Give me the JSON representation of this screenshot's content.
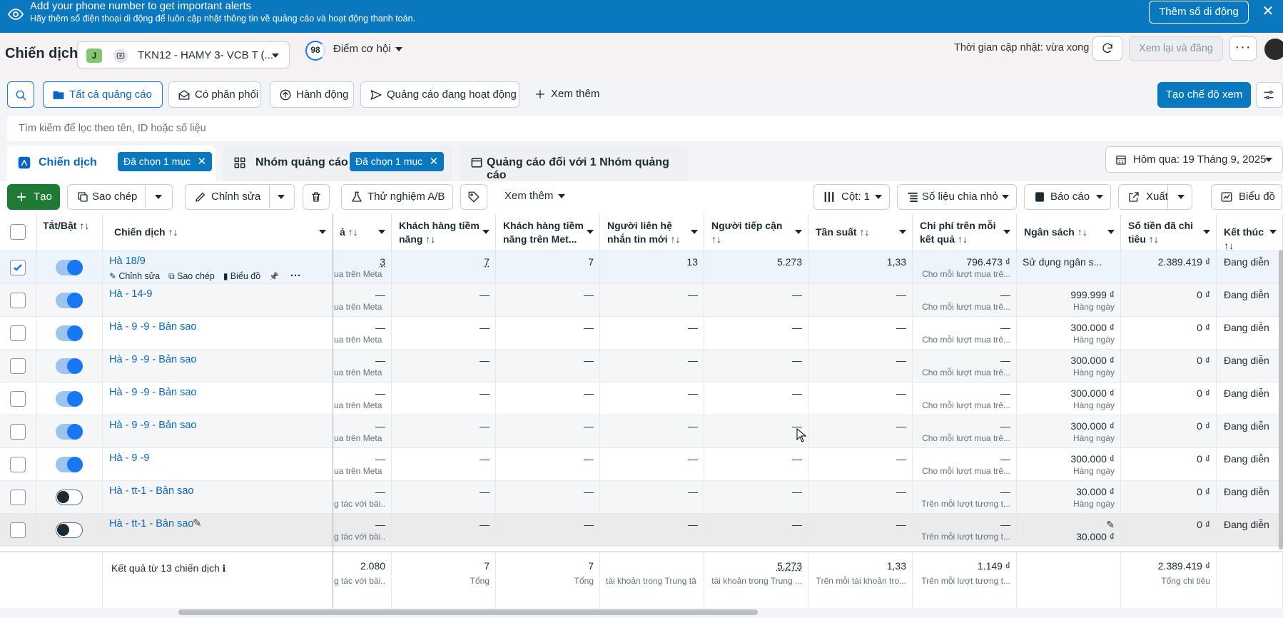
{
  "banner": {
    "title": "Add your phone number to get important alerts",
    "subtitle": "Hãy thêm số điện thoại di động để luôn cập nhật thông tin về quảng cáo và hoạt động thanh toán.",
    "button": "Thêm số di động",
    "close": "✕"
  },
  "header": {
    "title": "Chiến dịch",
    "account_badge": "J",
    "account_name": "TKN12 - HAMY 3- VCB T (...",
    "score_value": "98",
    "score_label": "Điểm cơ hội",
    "update_time": "Thời gian cập nhật: vừa xong",
    "review_button": "Xem lại và đăng",
    "more": "···"
  },
  "filters": {
    "all_ads": "Tất cả quảng cáo",
    "delivery": "Có phân phối",
    "actions": "Hành động",
    "active_ads": "Quảng cáo đang hoạt động",
    "see_more": "Xem thêm",
    "create_view": "Tạo chế độ xem",
    "search_placeholder": "Tìm kiếm để lọc theo tên, ID hoặc số liệu"
  },
  "tabs": {
    "campaign": "Chiến dịch",
    "campaign_chip": "Đã chọn 1 mục",
    "adset": "Nhóm quảng cáo",
    "adset_chip": "Đã chọn 1 mục",
    "ads": "Quảng cáo đối với 1 Nhóm quảng cáo",
    "date": "Hôm qua: 19 Tháng 9, 2025"
  },
  "toolbar": {
    "create": "Tạo",
    "duplicate": "Sao chép",
    "edit": "Chỉnh sửa",
    "ab_test": "Thử nghiệm A/B",
    "more": "Xem thêm",
    "columns": "Cột: 1",
    "breakdown": "Số liệu chia nhỏ",
    "reports": "Báo cáo",
    "export": "Xuất",
    "chart": "Biểu đồ"
  },
  "columns": {
    "toggle": "Tắt/Bật ↑↓",
    "campaign": "Chiến dịch ↑↓",
    "results": "ả ↑↓",
    "leads": "Khách hàng tiềm năng ↑↓",
    "leads_meta": "Khách hàng tiềm năng trên Met...",
    "new_contacts": "Người liên hệ nhắn tin mới ↑↓",
    "reach": "Người tiếp cận ↑↓",
    "frequency": "Tần suất ↑↓",
    "cost_per_result": "Chi phí trên mỗi kết quả ↑↓",
    "budget": "Ngân sách ↑↓",
    "amount_spent": "Số tiền đã chi tiêu ↑↓",
    "end": "Kết thúc ↑↓"
  },
  "row_actions": {
    "edit": "Chỉnh sửa",
    "duplicate": "Sao chép",
    "chart": "Biểu đồ"
  },
  "rows": [
    {
      "name": "Hà 18/9",
      "results": "3",
      "results_sub": "ua trên Meta",
      "leads": "7",
      "leads_meta": "7",
      "contacts": "13",
      "reach": "5.273",
      "freq": "1,33",
      "cpr": "796.473 ₫",
      "cpr_sub": "Cho mỗi lượt mua trê...",
      "budget": "Sử dụng ngân s...",
      "budget_sub": "",
      "spent": "2.389.419 ₫",
      "end": "Đang diễn"
    },
    {
      "name": "Hà - 14-9",
      "results": "—",
      "results_sub": "ua trên Meta",
      "leads": "—",
      "leads_meta": "—",
      "contacts": "—",
      "reach": "—",
      "freq": "—",
      "cpr": "—",
      "cpr_sub": "Cho mỗi lượt mua trê...",
      "budget": "999.999 ₫",
      "budget_sub": "Hàng ngày",
      "spent": "0 ₫",
      "end": "Đang diễn"
    },
    {
      "name": "Hà - 9 -9 - Bản sao",
      "results": "—",
      "results_sub": "ua trên Meta",
      "leads": "—",
      "leads_meta": "—",
      "contacts": "—",
      "reach": "—",
      "freq": "—",
      "cpr": "—",
      "cpr_sub": "Cho mỗi lượt mua trê...",
      "budget": "300.000 ₫",
      "budget_sub": "Hàng ngày",
      "spent": "0 ₫",
      "end": "Đang diễn"
    },
    {
      "name": "Hà - 9 -9 - Bản sao",
      "results": "—",
      "results_sub": "ua trên Meta",
      "leads": "—",
      "leads_meta": "—",
      "contacts": "—",
      "reach": "—",
      "freq": "—",
      "cpr": "—",
      "cpr_sub": "Cho mỗi lượt mua trê...",
      "budget": "300.000 ₫",
      "budget_sub": "Hàng ngày",
      "spent": "0 ₫",
      "end": "Đang diễn"
    },
    {
      "name": "Hà - 9 -9 - Bản sao",
      "results": "—",
      "results_sub": "ua trên Meta",
      "leads": "—",
      "leads_meta": "—",
      "contacts": "—",
      "reach": "—",
      "freq": "—",
      "cpr": "—",
      "cpr_sub": "Cho mỗi lượt mua trê...",
      "budget": "300.000 ₫",
      "budget_sub": "Hàng ngày",
      "spent": "0 ₫",
      "end": "Đang diễn"
    },
    {
      "name": "Hà - 9 -9 - Bản sao",
      "results": "—",
      "results_sub": "ua trên Meta",
      "leads": "—",
      "leads_meta": "—",
      "contacts": "—",
      "reach": "—",
      "freq": "—",
      "cpr": "—",
      "cpr_sub": "Cho mỗi lượt mua trê...",
      "budget": "300.000 ₫",
      "budget_sub": "Hàng ngày",
      "spent": "0 ₫",
      "end": "Đang diễn"
    },
    {
      "name": "Hà - 9 -9",
      "results": "—",
      "results_sub": "ua trên Meta",
      "leads": "—",
      "leads_meta": "—",
      "contacts": "—",
      "reach": "—",
      "freq": "—",
      "cpr": "—",
      "cpr_sub": "Cho mỗi lượt mua trê...",
      "budget": "300.000 ₫",
      "budget_sub": "Hàng ngày",
      "spent": "0 ₫",
      "end": "Đang diễn"
    },
    {
      "name": "Hà - tt-1 - Bản sao",
      "results": "—",
      "results_sub": "g tác với bài...",
      "leads": "—",
      "leads_meta": "—",
      "contacts": "—",
      "reach": "—",
      "freq": "—",
      "cpr": "—",
      "cpr_sub": "Trên mỗi lượt tương t...",
      "budget": "30.000 ₫",
      "budget_sub": "Hàng ngày",
      "spent": "0 ₫",
      "end": "Đang diễn"
    },
    {
      "name": "Hà - tt-1 - Bản sao",
      "results": "—",
      "results_sub": "g tác với bài...",
      "leads": "—",
      "leads_meta": "—",
      "contacts": "—",
      "reach": "—",
      "freq": "—",
      "cpr": "—",
      "cpr_sub": "Trên mỗi lượt tương t...",
      "budget": "",
      "budget_sub": "30.000 ₫",
      "spent": "0 ₫",
      "end": "Đang diễn"
    }
  ],
  "totals": {
    "label": "Kết quả từ 13 chiến dịch",
    "results": "2.080",
    "results_sub": "g tác với bài...",
    "leads": "7",
    "leads_sub": "Tổng",
    "leads_meta": "7",
    "leads_meta_sub": "Tổng",
    "contacts_sub": "tài khoản trong Trung tâ",
    "reach": "5.273",
    "reach_sub": "tài khoản trong Trung ...",
    "freq": "1,33",
    "freq_sub": "Trên mỗi tài khoản tro...",
    "cpr": "1.149 ₫",
    "cpr_sub": "Trên mỗi lượt tương t...",
    "spent": "2.389.419 ₫",
    "spent_sub": "Tổng chi tiêu"
  }
}
